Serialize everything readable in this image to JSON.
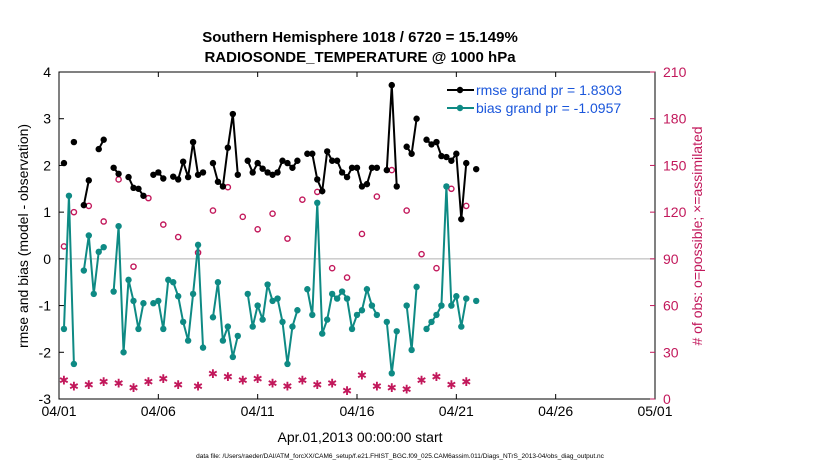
{
  "chart_data": {
    "type": "line",
    "title": "Southern Hemisphere 1018 / 6720 = 15.149%",
    "subtitle": "RADIOSONDE_TEMPERATURE @ 1000 hPa",
    "xlabel": "Apr.01,2013 00:00:00 start",
    "ylabel_left": "rmse and bias (model - observation)",
    "ylabel_right": "# of obs: o=possible; ×=assimilated",
    "footer": "data file: /Users/raeder/DAI/ATM_forcXX/CAM6_setup/f.e21.FHIST_BGC.f09_025.CAM6assim.011/Diags_NTrS_2013-04/obs_diag_output.nc",
    "xlim": [
      0,
      30
    ],
    "ylim_left": [
      -3,
      4
    ],
    "ylim_right": [
      0,
      210
    ],
    "x_ticks": [
      0,
      5,
      10,
      15,
      20,
      25,
      30
    ],
    "x_tick_labels": [
      "04/01",
      "04/06",
      "04/11",
      "04/16",
      "04/21",
      "04/26",
      "05/01"
    ],
    "y_ticks_left": [
      -3,
      -2,
      -1,
      0,
      1,
      2,
      3,
      4
    ],
    "y_ticks_right": [
      0,
      30,
      60,
      90,
      120,
      150,
      180,
      210
    ],
    "zero_line": 0,
    "legend_position": "top-right",
    "colors": {
      "rmse": "#000000",
      "bias": "#0e8a84",
      "obs": "#c2185b",
      "legend_text": "#1a56db",
      "zero_line": "#b0b0b0"
    },
    "series": [
      {
        "name": "rmse grand pr = 1.8303",
        "axis": "left",
        "points": [
          [
            0.25,
            2.05
          ],
          [
            0.5,
            null
          ],
          [
            0.75,
            2.5
          ],
          [
            1.0,
            null
          ],
          [
            1.25,
            1.15
          ],
          [
            1.5,
            1.68
          ],
          [
            1.75,
            null
          ],
          [
            2.0,
            2.35
          ],
          [
            2.25,
            2.55
          ],
          [
            2.5,
            null
          ],
          [
            2.75,
            1.95
          ],
          [
            3.0,
            1.82
          ],
          [
            3.25,
            null
          ],
          [
            3.5,
            1.75
          ],
          [
            3.75,
            1.52
          ],
          [
            4.0,
            1.5
          ],
          [
            4.25,
            1.35
          ],
          [
            4.5,
            null
          ],
          [
            4.75,
            1.8
          ],
          [
            5.0,
            1.85
          ],
          [
            5.25,
            1.72
          ],
          [
            5.5,
            null
          ],
          [
            5.75,
            1.76
          ],
          [
            6.0,
            1.7
          ],
          [
            6.25,
            2.08
          ],
          [
            6.5,
            1.75
          ],
          [
            6.75,
            2.5
          ],
          [
            7.0,
            1.8
          ],
          [
            7.25,
            1.85
          ],
          [
            7.5,
            null
          ],
          [
            7.75,
            2.05
          ],
          [
            8.0,
            1.65
          ],
          [
            8.25,
            1.55
          ],
          [
            8.5,
            2.38
          ],
          [
            8.75,
            3.1
          ],
          [
            9.0,
            1.8
          ],
          [
            9.25,
            null
          ],
          [
            9.5,
            2.1
          ],
          [
            9.75,
            1.85
          ],
          [
            10.0,
            2.05
          ],
          [
            10.25,
            1.93
          ],
          [
            10.5,
            1.85
          ],
          [
            10.75,
            1.8
          ],
          [
            11.0,
            1.85
          ],
          [
            11.25,
            2.1
          ],
          [
            11.5,
            2.05
          ],
          [
            11.75,
            1.95
          ],
          [
            12.0,
            2.1
          ],
          [
            12.25,
            null
          ],
          [
            12.5,
            2.25
          ],
          [
            12.75,
            2.25
          ],
          [
            13.0,
            1.7
          ],
          [
            13.25,
            1.45
          ],
          [
            13.5,
            2.3
          ],
          [
            13.75,
            2.1
          ],
          [
            14.0,
            2.1
          ],
          [
            14.25,
            1.85
          ],
          [
            14.5,
            1.75
          ],
          [
            14.75,
            1.95
          ],
          [
            15.0,
            1.95
          ],
          [
            15.25,
            1.55
          ],
          [
            15.5,
            1.6
          ],
          [
            15.75,
            1.95
          ],
          [
            16.0,
            1.95
          ],
          [
            16.25,
            null
          ],
          [
            16.5,
            1.9
          ],
          [
            16.75,
            3.72
          ],
          [
            17.0,
            1.55
          ],
          [
            17.25,
            null
          ],
          [
            17.5,
            2.4
          ],
          [
            17.75,
            2.25
          ],
          [
            18.0,
            3.0
          ],
          [
            18.25,
            null
          ],
          [
            18.5,
            2.55
          ],
          [
            18.75,
            2.45
          ],
          [
            19.0,
            2.5
          ],
          [
            19.25,
            2.2
          ],
          [
            19.5,
            2.18
          ],
          [
            19.75,
            2.1
          ],
          [
            20.0,
            2.25
          ],
          [
            20.25,
            0.85
          ],
          [
            20.5,
            2.05
          ],
          [
            20.75,
            null
          ],
          [
            21.0,
            1.92
          ]
        ]
      },
      {
        "name": "bias grand pr = -1.0957",
        "axis": "left",
        "points": [
          [
            0.25,
            -1.5
          ],
          [
            0.5,
            1.35
          ],
          [
            0.75,
            -2.25
          ],
          [
            1.0,
            null
          ],
          [
            1.25,
            -0.25
          ],
          [
            1.5,
            0.5
          ],
          [
            1.75,
            -0.75
          ],
          [
            2.0,
            0.15
          ],
          [
            2.25,
            0.25
          ],
          [
            2.5,
            null
          ],
          [
            2.75,
            -0.7
          ],
          [
            3.0,
            0.7
          ],
          [
            3.25,
            -2.0
          ],
          [
            3.5,
            -0.45
          ],
          [
            3.75,
            -0.9
          ],
          [
            4.0,
            -1.5
          ],
          [
            4.25,
            -0.95
          ],
          [
            4.5,
            null
          ],
          [
            4.75,
            -0.95
          ],
          [
            5.0,
            -0.9
          ],
          [
            5.25,
            -1.5
          ],
          [
            5.5,
            -0.45
          ],
          [
            5.75,
            -0.5
          ],
          [
            6.0,
            -0.8
          ],
          [
            6.25,
            -1.35
          ],
          [
            6.5,
            -1.75
          ],
          [
            6.75,
            -0.75
          ],
          [
            7.0,
            0.3
          ],
          [
            7.25,
            -1.9
          ],
          [
            7.5,
            null
          ],
          [
            7.75,
            -1.25
          ],
          [
            8.0,
            -0.5
          ],
          [
            8.25,
            -1.75
          ],
          [
            8.5,
            -1.45
          ],
          [
            8.75,
            -2.1
          ],
          [
            9.0,
            -1.65
          ],
          [
            9.25,
            null
          ],
          [
            9.5,
            -0.75
          ],
          [
            9.75,
            -1.45
          ],
          [
            10.0,
            -1.0
          ],
          [
            10.25,
            -1.3
          ],
          [
            10.5,
            -0.55
          ],
          [
            10.75,
            -0.9
          ],
          [
            11.0,
            -0.85
          ],
          [
            11.25,
            -1.35
          ],
          [
            11.5,
            -2.25
          ],
          [
            11.75,
            -1.45
          ],
          [
            12.0,
            -1.1
          ],
          [
            12.25,
            null
          ],
          [
            12.5,
            -0.65
          ],
          [
            12.75,
            -1.2
          ],
          [
            13.0,
            1.2
          ],
          [
            13.25,
            -1.6
          ],
          [
            13.5,
            -1.3
          ],
          [
            13.75,
            -0.75
          ],
          [
            14.0,
            -0.85
          ],
          [
            14.25,
            -0.7
          ],
          [
            14.5,
            -0.85
          ],
          [
            14.75,
            -1.5
          ],
          [
            15.0,
            -1.2
          ],
          [
            15.25,
            -1.1
          ],
          [
            15.5,
            -0.65
          ],
          [
            15.75,
            -1.0
          ],
          [
            16.0,
            -1.2
          ],
          [
            16.25,
            null
          ],
          [
            16.5,
            -1.35
          ],
          [
            16.75,
            -2.45
          ],
          [
            17.0,
            -1.55
          ],
          [
            17.25,
            null
          ],
          [
            17.5,
            -1.0
          ],
          [
            17.75,
            -1.95
          ],
          [
            18.0,
            -0.6
          ],
          [
            18.25,
            null
          ],
          [
            18.5,
            -1.5
          ],
          [
            18.75,
            -1.35
          ],
          [
            19.0,
            -1.2
          ],
          [
            19.25,
            -1.0
          ],
          [
            19.5,
            1.55
          ],
          [
            19.75,
            -1.0
          ],
          [
            20.0,
            -0.8
          ],
          [
            20.25,
            -1.45
          ],
          [
            20.5,
            -0.85
          ],
          [
            20.75,
            null
          ],
          [
            21.0,
            -0.9
          ]
        ]
      }
    ],
    "obs_possible": [
      [
        0.25,
        98
      ],
      [
        0.75,
        120
      ],
      [
        1.5,
        124
      ],
      [
        2.25,
        114
      ],
      [
        3.0,
        141
      ],
      [
        3.75,
        85
      ],
      [
        4.5,
        129
      ],
      [
        5.25,
        112
      ],
      [
        6.0,
        104
      ],
      [
        7.0,
        94
      ],
      [
        7.75,
        121
      ],
      [
        8.5,
        136
      ],
      [
        9.25,
        117
      ],
      [
        10.0,
        109
      ],
      [
        10.75,
        119
      ],
      [
        11.5,
        103
      ],
      [
        12.25,
        128
      ],
      [
        13.0,
        133
      ],
      [
        13.75,
        84
      ],
      [
        14.5,
        78
      ],
      [
        15.25,
        106
      ],
      [
        16.0,
        130
      ],
      [
        16.75,
        147
      ],
      [
        17.5,
        121
      ],
      [
        18.25,
        93
      ],
      [
        19.0,
        84
      ],
      [
        19.75,
        135
      ],
      [
        20.5,
        124
      ]
    ],
    "obs_assimilated": [
      [
        0.25,
        12
      ],
      [
        0.75,
        8
      ],
      [
        1.5,
        9
      ],
      [
        2.25,
        11
      ],
      [
        3.0,
        10
      ],
      [
        3.75,
        7
      ],
      [
        4.5,
        11
      ],
      [
        5.25,
        13
      ],
      [
        6.0,
        9
      ],
      [
        7.0,
        8
      ],
      [
        7.75,
        16
      ],
      [
        8.5,
        14
      ],
      [
        9.25,
        12
      ],
      [
        10.0,
        13
      ],
      [
        10.75,
        10
      ],
      [
        11.5,
        8
      ],
      [
        12.25,
        12
      ],
      [
        13.0,
        9
      ],
      [
        13.75,
        10
      ],
      [
        14.5,
        5
      ],
      [
        15.25,
        15
      ],
      [
        16.0,
        8
      ],
      [
        16.75,
        7
      ],
      [
        17.5,
        6
      ],
      [
        18.25,
        12
      ],
      [
        19.0,
        14
      ],
      [
        19.75,
        9
      ],
      [
        20.5,
        11
      ]
    ]
  }
}
